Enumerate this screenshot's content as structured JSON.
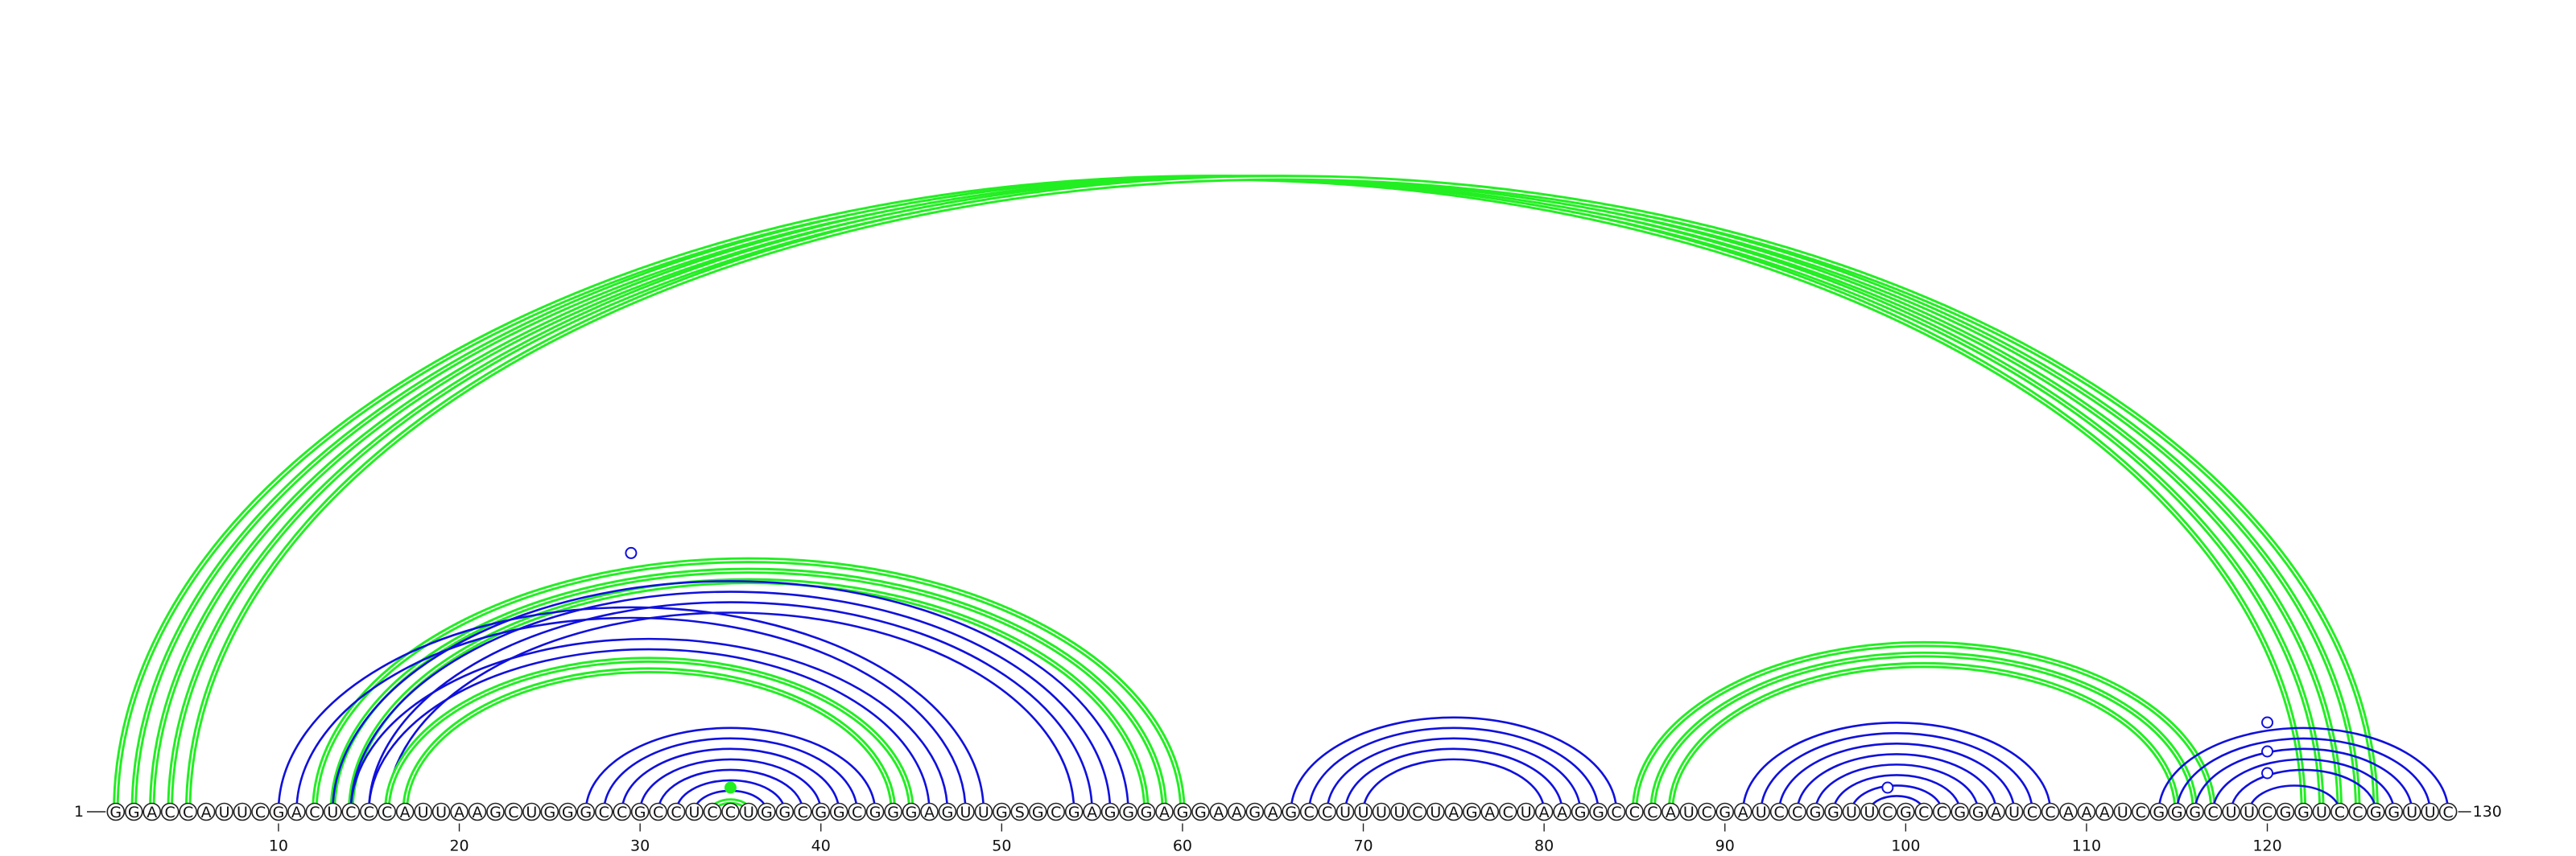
{
  "sequence": "GGACCAUUCGACUCCCAUUAAGCUGGGCCGCCUCCUGGCGGCGGGAGUUGSGCGAGGGAGGAAGAGCCUUUUCUAGACUAAGGCCCAUCGAUCCGGUUCGCCGGAUCCAAAUCGGGCUUCGGUCCGGUUC",
  "start_label": "1",
  "end_label": "130",
  "ticks": [
    "10",
    "20",
    "30",
    "40",
    "50",
    "60",
    "70",
    "80",
    "90",
    "100",
    "110",
    "120"
  ],
  "colors": {
    "green": "#22ee22",
    "blue": "#1010dd"
  },
  "arc_groups": [
    {
      "color": "green",
      "pairs": [
        [
          1,
          122
        ],
        [
          2,
          123
        ],
        [
          3,
          124
        ],
        [
          4,
          125
        ],
        [
          5,
          126
        ]
      ]
    },
    {
      "color": "green",
      "pairs": [
        [
          12,
          60
        ],
        [
          13,
          59
        ],
        [
          14,
          58
        ]
      ]
    },
    {
      "color": "blue",
      "pairs": [
        [
          10,
          49
        ],
        [
          11,
          48
        ],
        [
          14,
          47
        ],
        [
          15,
          46
        ],
        [
          16,
          45
        ]
      ]
    },
    {
      "color": "blue",
      "pairs": [
        [
          13,
          57
        ],
        [
          14,
          56
        ],
        [
          15,
          55
        ],
        [
          16,
          54
        ]
      ]
    },
    {
      "color": "green",
      "pairs": [
        [
          16,
          45
        ],
        [
          17,
          44
        ]
      ]
    },
    {
      "color": "blue",
      "pairs": [
        [
          27,
          43
        ],
        [
          28,
          42
        ],
        [
          29,
          41
        ],
        [
          30,
          40
        ],
        [
          31,
          39
        ],
        [
          32,
          38
        ],
        [
          33,
          37
        ]
      ]
    },
    {
      "color": "green",
      "pairs": [
        [
          34,
          36
        ]
      ]
    },
    {
      "color": "blue",
      "pairs": [
        [
          66,
          84
        ],
        [
          67,
          83
        ],
        [
          68,
          82
        ],
        [
          69,
          81
        ],
        [
          70,
          80
        ]
      ]
    },
    {
      "color": "green",
      "pairs": [
        [
          85,
          117
        ],
        [
          86,
          116
        ],
        [
          87,
          115
        ]
      ]
    },
    {
      "color": "blue",
      "pairs": [
        [
          91,
          108
        ],
        [
          92,
          107
        ],
        [
          93,
          106
        ],
        [
          94,
          105
        ],
        [
          95,
          104
        ],
        [
          96,
          103
        ],
        [
          97,
          102
        ],
        [
          98,
          101
        ]
      ]
    },
    {
      "color": "blue",
      "pairs": [
        [
          114,
          130
        ],
        [
          115,
          129
        ],
        [
          116,
          128
        ],
        [
          117,
          127
        ],
        [
          118,
          126
        ],
        [
          119,
          124
        ]
      ]
    }
  ],
  "markers": [
    {
      "pos": 35,
      "height": 0,
      "style": "filled",
      "color": "green"
    },
    {
      "pos": 29.5,
      "height": 0.72,
      "style": "open",
      "color": "blue"
    },
    {
      "pos": 99,
      "height": 0,
      "style": "open",
      "color": "blue"
    },
    {
      "pos": 120,
      "height": 0.2,
      "style": "open",
      "color": "blue"
    },
    {
      "pos": 120,
      "height": 0.5,
      "style": "open",
      "color": "blue"
    },
    {
      "pos": 120,
      "height": 0.9,
      "style": "open",
      "color": "blue"
    }
  ]
}
